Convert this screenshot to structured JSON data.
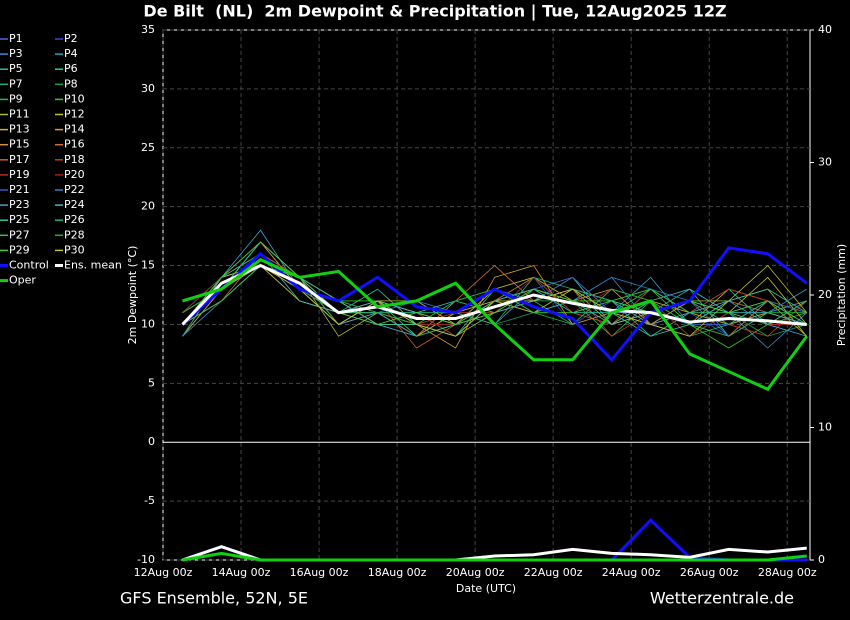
{
  "chart_data": {
    "type": "line",
    "title": "De Bilt  (NL)  2m Dewpoint & Precipitation | Tue, 12Aug2025 12Z",
    "ylabel": "2m Dewpoint (°C)",
    "y2label": "Precipitation (mm)",
    "xlabel": "Date (UTC)",
    "footer_left": "GFS Ensemble, 52N, 5E",
    "footer_right": "Wetterzentrale.de",
    "xlim": [
      0,
      398
    ],
    "xticks": [
      {
        "value": 0,
        "label": "12Aug 00z"
      },
      {
        "value": 48,
        "label": "14Aug 00z"
      },
      {
        "value": 96,
        "label": "16Aug 00z"
      },
      {
        "value": 144,
        "label": "18Aug 00z"
      },
      {
        "value": 192,
        "label": "20Aug 00z"
      },
      {
        "value": 240,
        "label": "22Aug 00z"
      },
      {
        "value": 288,
        "label": "24Aug 00z"
      },
      {
        "value": 336,
        "label": "26Aug 00z"
      },
      {
        "value": 384,
        "label": "28Aug 00z"
      }
    ],
    "ylim": [
      -10,
      35
    ],
    "yticks": [
      -10,
      -5,
      0,
      5,
      10,
      15,
      20,
      25,
      30,
      35
    ],
    "y2lim": [
      0,
      40
    ],
    "y2ticks": [
      0,
      10,
      20,
      30,
      40
    ],
    "grid": true,
    "x": [
      12,
      36,
      60,
      84,
      108,
      132,
      156,
      180,
      204,
      228,
      252,
      276,
      300,
      324,
      348,
      372,
      396
    ],
    "series": [
      {
        "name": "P1",
        "color": "#4a6cd4",
        "values": [
          10,
          13,
          16,
          14,
          12,
          10,
          9,
          11,
          12,
          13,
          14,
          10,
          12,
          9,
          11,
          12,
          11
        ]
      },
      {
        "name": "P2",
        "color": "#2f4fd0",
        "values": [
          9,
          14,
          15,
          13,
          11,
          12,
          11,
          10,
          12,
          14,
          10,
          12,
          13,
          11,
          9,
          12,
          10
        ]
      },
      {
        "name": "P3",
        "color": "#3a8ad0",
        "values": [
          10,
          13,
          17,
          14,
          10,
          12,
          10,
          9,
          13,
          11,
          12,
          14,
          10,
          12,
          11,
          8,
          11
        ]
      },
      {
        "name": "P4",
        "color": "#2aa0c0",
        "values": [
          11,
          14,
          16,
          13,
          11,
          11,
          12,
          11,
          10,
          13,
          12,
          11,
          14,
          10,
          12,
          11,
          13
        ]
      },
      {
        "name": "P5",
        "color": "#30b8b0",
        "values": [
          9,
          13,
          17,
          14,
          12,
          10,
          9,
          12,
          11,
          12,
          14,
          10,
          11,
          13,
          9,
          11,
          10
        ]
      },
      {
        "name": "P6",
        "color": "#20c8a0",
        "values": [
          10,
          14,
          15,
          12,
          11,
          13,
          10,
          10,
          12,
          14,
          11,
          12,
          9,
          11,
          13,
          10,
          12
        ]
      },
      {
        "name": "P7",
        "color": "#20b070",
        "values": [
          10,
          13,
          16,
          14,
          10,
          11,
          11,
          9,
          13,
          12,
          10,
          13,
          12,
          9,
          10,
          12,
          11
        ]
      },
      {
        "name": "P8",
        "color": "#10a050",
        "values": [
          9,
          12,
          15,
          13,
          12,
          12,
          9,
          11,
          10,
          11,
          13,
          11,
          10,
          12,
          11,
          9,
          10
        ]
      },
      {
        "name": "P9",
        "color": "#20c040",
        "values": [
          11,
          14,
          16,
          14,
          11,
          10,
          10,
          12,
          11,
          13,
          12,
          9,
          12,
          11,
          10,
          11,
          12
        ]
      },
      {
        "name": "P10",
        "color": "#30d020",
        "values": [
          10,
          13,
          17,
          13,
          12,
          12,
          11,
          10,
          12,
          11,
          11,
          12,
          13,
          10,
          8,
          10,
          11
        ]
      },
      {
        "name": "P11",
        "color": "#a0c030",
        "values": [
          10,
          12,
          15,
          14,
          9,
          11,
          10,
          9,
          11,
          12,
          13,
          10,
          11,
          12,
          12,
          13,
          9
        ]
      },
      {
        "name": "P12",
        "color": "#c8c020",
        "values": [
          11,
          13,
          16,
          13,
          10,
          12,
          12,
          10,
          13,
          14,
          12,
          11,
          10,
          9,
          11,
          14,
          10
        ]
      },
      {
        "name": "P13",
        "color": "#d0b020",
        "values": [
          10,
          14,
          15,
          12,
          11,
          11,
          9,
          11,
          12,
          11,
          13,
          12,
          11,
          10,
          13,
          12,
          9
        ]
      },
      {
        "name": "P14",
        "color": "#d8a020",
        "values": [
          9,
          13,
          16,
          14,
          12,
          10,
          10,
          8,
          14,
          15,
          10,
          11,
          12,
          11,
          10,
          11,
          12
        ]
      },
      {
        "name": "P15",
        "color": "#d89040",
        "values": [
          10,
          14,
          17,
          13,
          11,
          12,
          11,
          10,
          12,
          13,
          12,
          13,
          10,
          12,
          11,
          10,
          10
        ]
      },
      {
        "name": "P16",
        "color": "#d07030",
        "values": [
          11,
          13,
          15,
          14,
          10,
          11,
          9,
          12,
          15,
          12,
          14,
          11,
          12,
          10,
          9,
          12,
          11
        ]
      },
      {
        "name": "P17",
        "color": "#c86030",
        "values": [
          10,
          12,
          16,
          13,
          11,
          12,
          8,
          10,
          12,
          14,
          11,
          10,
          13,
          11,
          12,
          11,
          10
        ]
      },
      {
        "name": "P18",
        "color": "#c04020",
        "values": [
          9,
          14,
          16,
          14,
          12,
          11,
          10,
          11,
          11,
          12,
          13,
          9,
          11,
          12,
          10,
          9,
          12
        ]
      },
      {
        "name": "P19",
        "color": "#b03020",
        "values": [
          10,
          13,
          15,
          13,
          11,
          10,
          11,
          9,
          12,
          13,
          12,
          12,
          10,
          11,
          13,
          12,
          11
        ]
      },
      {
        "name": "P20",
        "color": "#a02010",
        "values": [
          11,
          14,
          17,
          14,
          10,
          12,
          10,
          10,
          11,
          14,
          11,
          13,
          12,
          9,
          11,
          10,
          10
        ]
      },
      {
        "name": "P21",
        "color": "#3060c0",
        "values": [
          10,
          13,
          16,
          13,
          12,
          11,
          12,
          11,
          13,
          12,
          14,
          11,
          11,
          10,
          10,
          12,
          11
        ]
      },
      {
        "name": "P22",
        "color": "#3080c0",
        "values": [
          9,
          12,
          15,
          14,
          11,
          12,
          10,
          9,
          12,
          13,
          12,
          14,
          13,
          12,
          9,
          11,
          12
        ]
      },
      {
        "name": "P23",
        "color": "#40a0d0",
        "values": [
          10,
          14,
          18,
          13,
          10,
          11,
          9,
          10,
          11,
          12,
          13,
          12,
          10,
          11,
          12,
          10,
          9
        ]
      },
      {
        "name": "P24",
        "color": "#40b8c0",
        "values": [
          11,
          13,
          16,
          12,
          11,
          12,
          11,
          12,
          13,
          11,
          12,
          10,
          12,
          13,
          11,
          11,
          10
        ]
      },
      {
        "name": "P25",
        "color": "#30c0a0",
        "values": [
          10,
          13,
          17,
          14,
          12,
          10,
          10,
          9,
          12,
          13,
          11,
          11,
          9,
          10,
          12,
          13,
          11
        ]
      },
      {
        "name": "P26",
        "color": "#20b080",
        "values": [
          9,
          14,
          16,
          13,
          11,
          11,
          11,
          11,
          10,
          14,
          13,
          12,
          11,
          12,
          10,
          12,
          10
        ]
      },
      {
        "name": "P27",
        "color": "#30c060",
        "values": [
          10,
          12,
          15,
          14,
          10,
          12,
          9,
          10,
          12,
          12,
          12,
          11,
          13,
          11,
          11,
          10,
          12
        ]
      },
      {
        "name": "P28",
        "color": "#20b040",
        "values": [
          11,
          13,
          16,
          13,
          12,
          11,
          10,
          12,
          13,
          11,
          10,
          13,
          12,
          10,
          9,
          11,
          11
        ]
      },
      {
        "name": "P29",
        "color": "#40d030",
        "values": [
          10,
          14,
          17,
          14,
          11,
          10,
          11,
          10,
          11,
          13,
          12,
          12,
          11,
          12,
          11,
          12,
          10
        ]
      },
      {
        "name": "P30",
        "color": "#c0c030",
        "values": [
          10,
          13,
          15,
          13,
          10,
          12,
          10,
          9,
          12,
          12,
          13,
          11,
          10,
          9,
          12,
          15,
          11
        ]
      },
      {
        "name": "Control",
        "color": "#1010ff",
        "values": [
          10,
          13,
          16,
          13,
          12,
          14,
          11.5,
          11,
          13,
          11.5,
          10.5,
          7,
          11,
          12,
          16.5,
          16,
          13.5
        ],
        "precip": [
          0,
          1,
          0,
          0,
          0,
          0,
          0,
          0,
          0,
          0,
          0,
          0,
          3,
          0.2,
          0,
          0,
          0
        ]
      },
      {
        "name": "Ens. mean",
        "color": "#ffffff",
        "values": [
          10,
          13.5,
          15,
          13.5,
          11,
          11.5,
          10.5,
          10.5,
          11.5,
          12.5,
          11.8,
          11.2,
          11,
          10.2,
          10.5,
          10.3,
          10
        ],
        "precip": [
          0,
          1,
          0,
          0,
          0,
          0,
          0,
          0,
          0.3,
          0.4,
          0.8,
          0.5,
          0.4,
          0.2,
          0.8,
          0.6,
          0.9
        ]
      },
      {
        "name": "Oper",
        "color": "#10d010",
        "values": [
          12,
          13,
          15.5,
          14,
          14.5,
          11.5,
          12,
          13.5,
          10,
          7,
          7,
          11,
          12,
          7.5,
          6,
          4.5,
          9
        ],
        "precip": [
          0,
          0.5,
          0,
          0,
          0,
          0,
          0,
          0,
          0,
          0,
          0,
          0,
          0,
          0,
          0,
          0,
          0.3
        ]
      }
    ]
  }
}
